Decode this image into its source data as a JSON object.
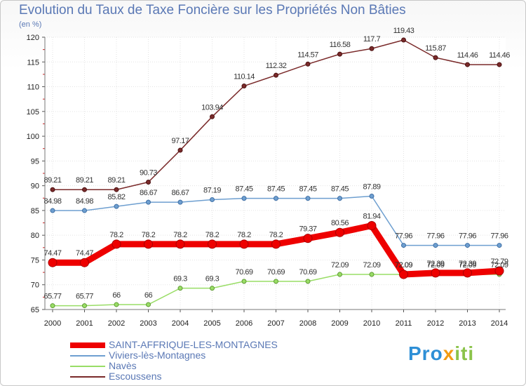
{
  "chart_data": {
    "type": "line",
    "title": "Evolution du Taux de Taxe Foncière sur les Propriétés Non Bâties",
    "unit_label": "(en %)",
    "x": [
      "2000",
      "2001",
      "2002",
      "2003",
      "2004",
      "2005",
      "2006",
      "2007",
      "2008",
      "2009",
      "2010",
      "2011",
      "2012",
      "2013",
      "2014"
    ],
    "ylim": [
      65,
      120
    ],
    "yticks": [
      65,
      70,
      75,
      80,
      85,
      90,
      95,
      100,
      105,
      110,
      115,
      120
    ],
    "grid": true,
    "legend_position": "bottom-left",
    "series": [
      {
        "name": "SAINT-AFFRIQUE-LES-MONTAGNES",
        "color": "#ee0000",
        "values": [
          74.47,
          74.47,
          78.2,
          78.2,
          78.2,
          78.2,
          78.2,
          78.2,
          79.37,
          80.56,
          81.94,
          72.09,
          72.39,
          72.39,
          72.79
        ],
        "labels": [
          "74.47",
          "74.47",
          "78.2",
          "78.2",
          "78.2",
          "78.2",
          "78.2",
          "78.2",
          "79.37",
          "80.56",
          "81.94",
          "72.09",
          "72.39",
          "72.39",
          "72.79"
        ]
      },
      {
        "name": "Viviers-lès-Montagnes",
        "color": "#6e9fd0",
        "values": [
          84.98,
          84.98,
          85.82,
          86.67,
          86.67,
          87.19,
          87.45,
          87.45,
          87.45,
          87.45,
          87.89,
          77.96,
          77.96,
          77.96,
          77.96
        ],
        "labels": [
          "84.98",
          "84.98",
          "85.82",
          "86.67",
          "86.67",
          "87.19",
          "87.45",
          "87.45",
          "87.45",
          "87.45",
          "87.89",
          "77.96",
          "77.96",
          "77.96",
          "77.96"
        ]
      },
      {
        "name": "Navès",
        "color": "#99dd66",
        "values": [
          65.77,
          65.77,
          66,
          66,
          69.3,
          69.3,
          70.69,
          70.69,
          70.69,
          72.09,
          72.09,
          72.09,
          72.09,
          72.09,
          72.09
        ],
        "labels": [
          "65.77",
          "65.77",
          "66",
          "66",
          "69.3",
          "69.3",
          "70.69",
          "70.69",
          "70.69",
          "72.09",
          "72.09",
          "72.09",
          "72.09",
          "72.09",
          "72.09"
        ]
      },
      {
        "name": "Escoussens",
        "color": "#7a2a2a",
        "values": [
          89.21,
          89.21,
          89.21,
          90.73,
          97.17,
          103.94,
          110.14,
          112.32,
          114.57,
          116.58,
          117.7,
          119.43,
          115.87,
          114.46,
          114.46
        ],
        "labels": [
          "89.21",
          "89.21",
          "89.21",
          "90.73",
          "97.17",
          "103.94",
          "110.14",
          "112.32",
          "114.57",
          "116.58",
          "117.7",
          "119.43",
          "115.87",
          "114.46",
          "114.46"
        ]
      }
    ]
  },
  "logo": {
    "part1": "Pro",
    "part2": "x",
    "part3": "iti"
  }
}
